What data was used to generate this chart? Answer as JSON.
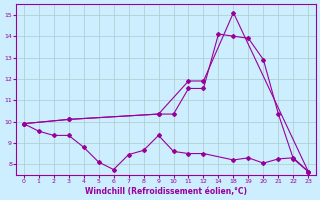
{
  "xlabel": "Windchill (Refroidissement éolien,°C)",
  "bg_color": "#cceeff",
  "line_color": "#990099",
  "grid_color": "#aacccc",
  "ylim": [
    7.5,
    15.5
  ],
  "yticks": [
    8,
    9,
    10,
    11,
    12,
    13,
    14,
    15
  ],
  "xtick_labels": [
    "0",
    "1",
    "2",
    "3",
    "4",
    "5",
    "6",
    "7",
    "8",
    "9",
    "10",
    "11",
    "12",
    "14",
    "18",
    "19",
    "20",
    "21",
    "22",
    "23"
  ],
  "line1_indices": [
    0,
    1,
    2,
    3,
    4,
    5,
    6,
    7,
    8,
    9,
    10,
    11,
    12,
    14,
    15,
    16,
    17,
    18,
    19
  ],
  "line1_y": [
    9.9,
    9.55,
    9.35,
    9.35,
    8.8,
    8.1,
    7.75,
    8.45,
    8.65,
    9.35,
    8.6,
    8.5,
    8.5,
    8.2,
    8.3,
    8.05,
    8.25,
    8.3,
    7.65
  ],
  "line2_indices": [
    0,
    3,
    9,
    11,
    12,
    14,
    19
  ],
  "line2_y": [
    9.9,
    10.1,
    10.35,
    11.9,
    11.9,
    15.1,
    7.65
  ],
  "line3_indices": [
    0,
    3,
    9,
    10,
    11,
    12,
    13,
    14,
    15,
    16,
    17,
    18,
    19
  ],
  "line3_y": [
    9.9,
    10.1,
    10.35,
    10.35,
    11.55,
    11.55,
    14.1,
    14.0,
    13.9,
    12.9,
    10.35,
    8.25,
    7.65
  ]
}
